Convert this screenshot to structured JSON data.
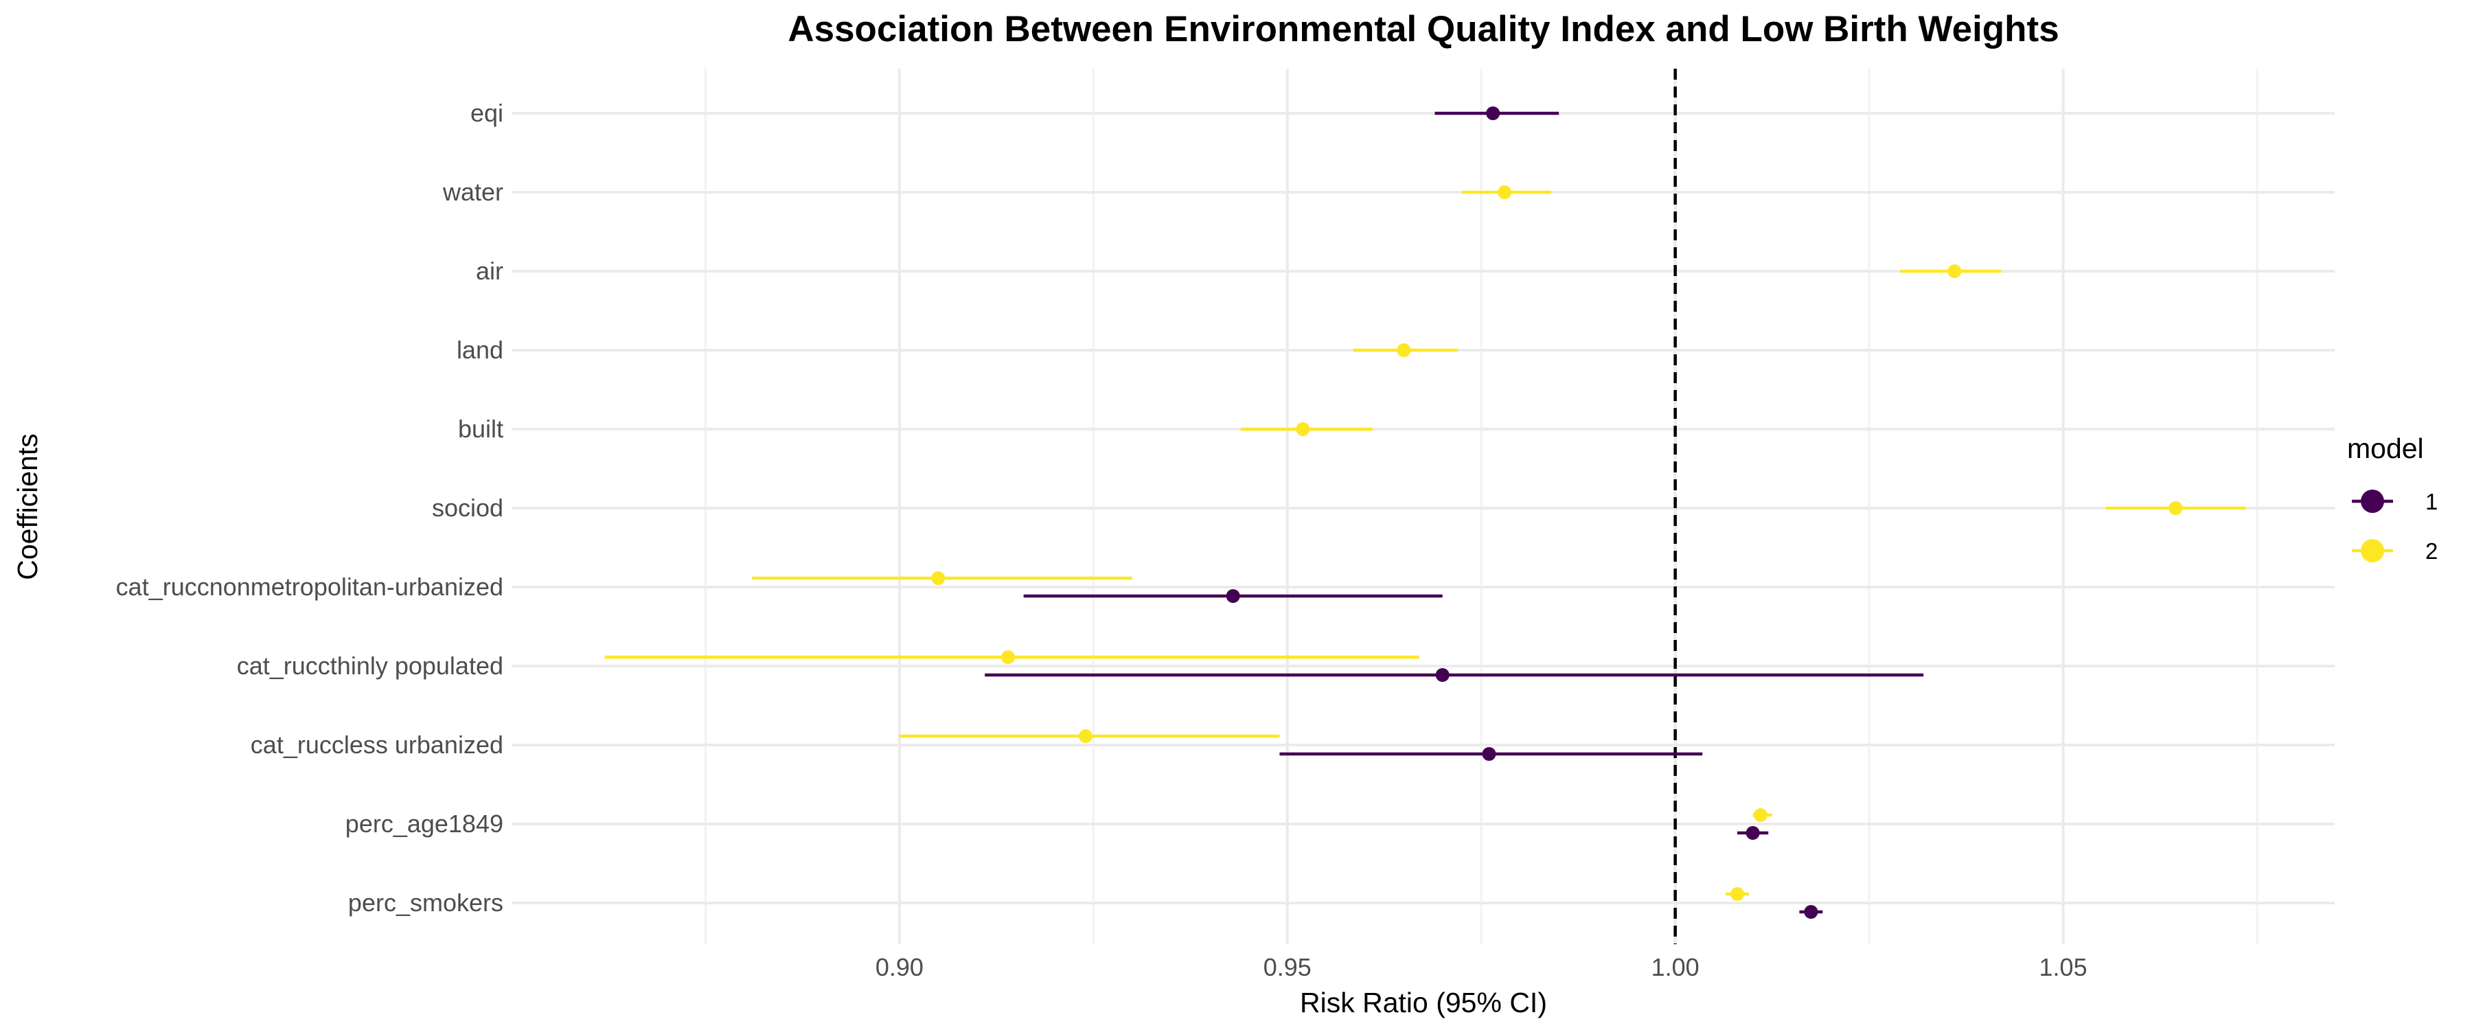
{
  "chart_data": {
    "type": "scatter",
    "subtype": "forest-plot",
    "title": "Association Between Environmental Quality Index and Low Birth Weights",
    "xlabel": "Risk Ratio (95% CI)",
    "ylabel": "Coefficients",
    "xlim": [
      0.85,
      1.085
    ],
    "x_ticks": [
      "0.90",
      "0.95",
      "1.00",
      "1.05"
    ],
    "x_tick_values": [
      0.9,
      0.95,
      1.0,
      1.05
    ],
    "grid": true,
    "reference_line": 1.0,
    "categories": [
      "eqi",
      "water",
      "air",
      "land",
      "built",
      "sociod",
      "cat_ruccnonmetropolitan-urbanized",
      "cat_ruccthinly populated",
      "cat_ruccless urbanized",
      "perc_age1849",
      "perc_smokers"
    ],
    "legend": {
      "title": "model",
      "position": "right"
    },
    "series": [
      {
        "name": "1",
        "color": "#440154",
        "points": [
          {
            "term": "eqi",
            "estimate": 0.9765,
            "lower": 0.969,
            "upper": 0.985
          },
          {
            "term": "cat_ruccnonmetropolitan-urbanized",
            "estimate": 0.943,
            "lower": 0.916,
            "upper": 0.97
          },
          {
            "term": "cat_ruccthinly populated",
            "estimate": 0.97,
            "lower": 0.911,
            "upper": 1.032
          },
          {
            "term": "cat_ruccless urbanized",
            "estimate": 0.976,
            "lower": 0.949,
            "upper": 1.0035
          },
          {
            "term": "perc_age1849",
            "estimate": 1.01,
            "lower": 1.008,
            "upper": 1.012
          },
          {
            "term": "perc_smokers",
            "estimate": 1.0175,
            "lower": 1.016,
            "upper": 1.019
          }
        ]
      },
      {
        "name": "2",
        "color": "#FDE725",
        "points": [
          {
            "term": "water",
            "estimate": 0.978,
            "lower": 0.9725,
            "upper": 0.984
          },
          {
            "term": "air",
            "estimate": 1.036,
            "lower": 1.029,
            "upper": 1.042
          },
          {
            "term": "land",
            "estimate": 0.965,
            "lower": 0.9585,
            "upper": 0.972
          },
          {
            "term": "built",
            "estimate": 0.952,
            "lower": 0.944,
            "upper": 0.961
          },
          {
            "term": "sociod",
            "estimate": 1.0645,
            "lower": 1.0555,
            "upper": 1.0735
          },
          {
            "term": "cat_ruccnonmetropolitan-urbanized",
            "estimate": 0.905,
            "lower": 0.881,
            "upper": 0.93
          },
          {
            "term": "cat_ruccthinly populated",
            "estimate": 0.914,
            "lower": 0.862,
            "upper": 0.967
          },
          {
            "term": "cat_ruccless urbanized",
            "estimate": 0.924,
            "lower": 0.9,
            "upper": 0.949
          },
          {
            "term": "perc_age1849",
            "estimate": 1.011,
            "lower": 1.01,
            "upper": 1.0125
          },
          {
            "term": "perc_smokers",
            "estimate": 1.008,
            "lower": 1.0065,
            "upper": 1.0095
          }
        ]
      }
    ]
  }
}
